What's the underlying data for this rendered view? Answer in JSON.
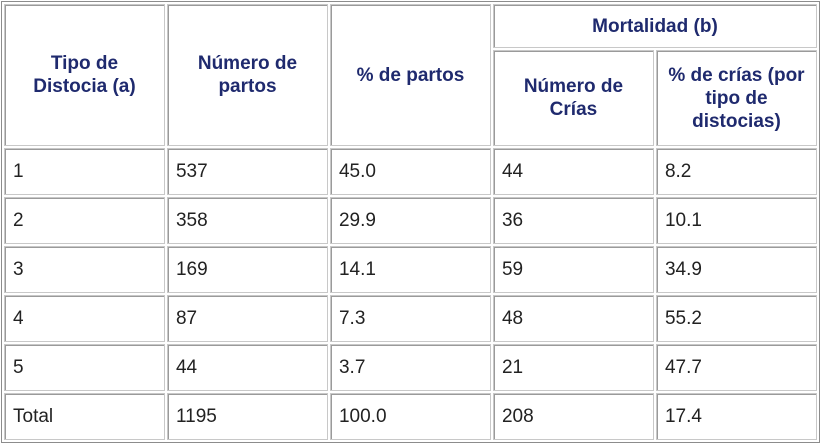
{
  "table": {
    "headers": {
      "tipo": "Tipo de Distocia (a)",
      "numero_partos": "Número de partos",
      "pct_partos": "% de partos",
      "mortalidad": "Mortalidad (b)",
      "numero_crias": "Número de Crías",
      "pct_crias": "% de crías (por tipo de distocias)"
    },
    "rows": [
      [
        "1",
        "537",
        "45.0",
        "44",
        "8.2"
      ],
      [
        "2",
        "358",
        "29.9",
        "36",
        "10.1"
      ],
      [
        "3",
        "169",
        "14.1",
        "59",
        "34.9"
      ],
      [
        "4",
        "87",
        "7.3",
        "48",
        "55.2"
      ],
      [
        "5",
        "44",
        "3.7",
        "21",
        "47.7"
      ],
      [
        "Total",
        "1195",
        "100.0",
        "208",
        "17.4"
      ]
    ]
  }
}
